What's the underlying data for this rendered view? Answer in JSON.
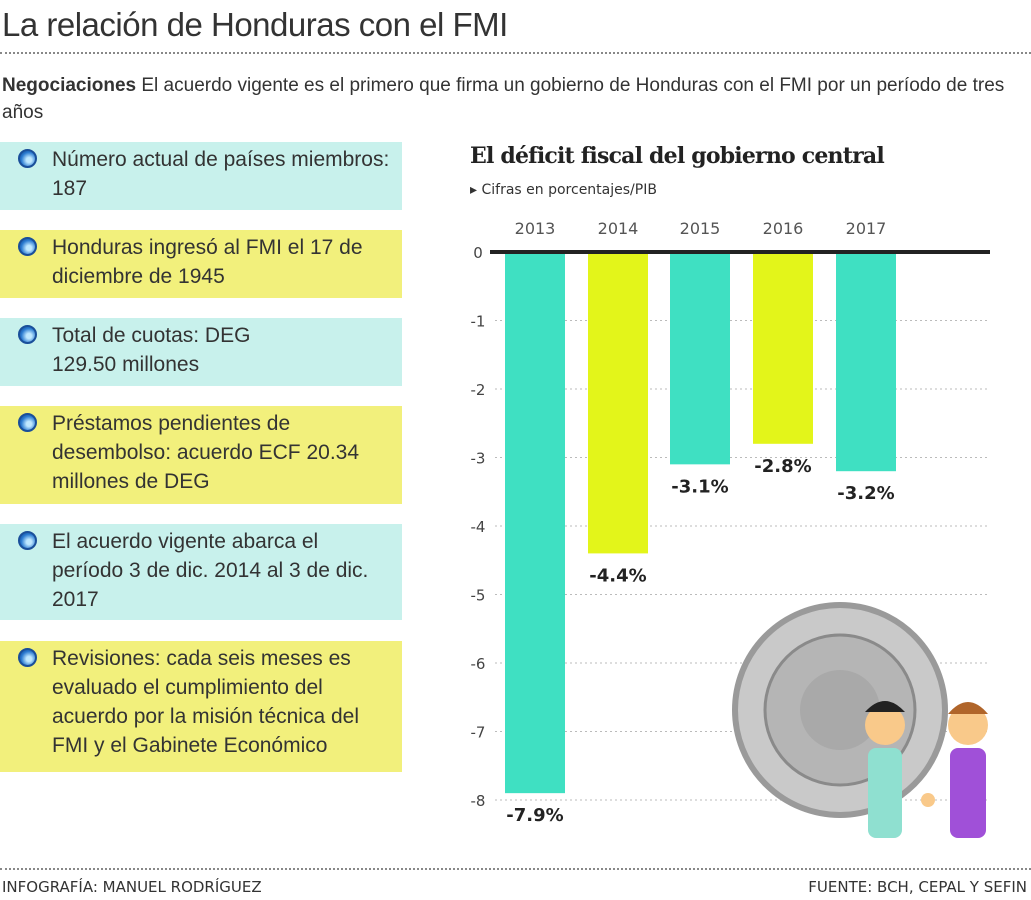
{
  "title": "La relación de Honduras con el FMI",
  "intro": {
    "lead": "Negociaciones",
    "text": " El acuerdo vigente es el primero que firma un gobierno de Honduras con el FMI por un período de tres años"
  },
  "facts": [
    "Número actual de países miembros: 187",
    "Honduras ingresó al FMI el 17 de diciembre de 1945",
    "Total de cuotas: DEG 129.50 millones",
    "Préstamos pendientes de desembolso: acuerdo ECF 20.34 millones de DEG",
    "El  acuerdo vigente abarca el período 3 de dic. 2014 al 3 de dic. 2017",
    "Revisiones: cada seis meses es evaluado el cumplimiento del acuerdo por la misión técnica del FMI y el Gabinete Económico"
  ],
  "colors": {
    "box_cyan": "#c8f1ec",
    "box_yellow": "#f2f07c",
    "bar_teal": "#3fe0c2",
    "bar_yellow": "#e3f51a"
  },
  "chart_data": {
    "type": "bar",
    "title": "El déficit fiscal del  gobierno central",
    "subtitle": "Cifras en porcentajes/PIB",
    "categories": [
      "2013",
      "2014",
      "2015",
      "2016",
      "2017"
    ],
    "values": [
      -7.9,
      -4.4,
      -3.1,
      -2.8,
      -3.2
    ],
    "data_labels": [
      "-7.9%",
      "-4.4%",
      "-3.1%",
      "-2.8%",
      "-3.2%"
    ],
    "ylim": [
      -8,
      0
    ],
    "yticks": [
      "0",
      "-1",
      "-2",
      "-3",
      "-4",
      "-5",
      "-6",
      "-7",
      "-8"
    ],
    "grid": true
  },
  "footer": {
    "left": "INFOGRAFÍA: MANUEL RODRÍGUEZ",
    "right": "FUENTE: BCH, CEPAL Y SEFIN"
  }
}
